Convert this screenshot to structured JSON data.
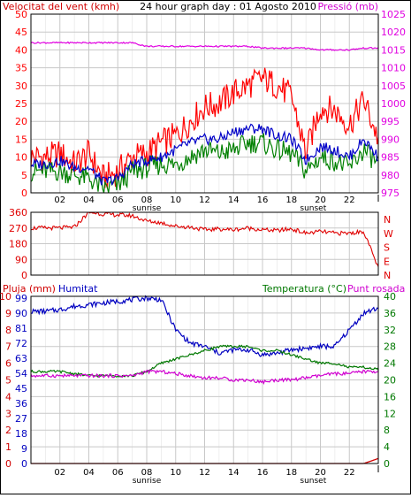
{
  "title": "24 hour graph day : 01 Agosto 2010",
  "colors": {
    "background": "#ffffff",
    "frame": "#000000",
    "grid": "#c8c8c8",
    "gust": "#ff0000",
    "wind": "#0000c8",
    "wind_min": "#008000",
    "pressure": "#e000e0",
    "direction": "#e00000",
    "rain": "#d00000",
    "humidity": "#0000c0",
    "temperature": "#007800",
    "dewpoint": "#d000d0"
  },
  "hours": [
    "02",
    "04",
    "06",
    "08",
    "10",
    "12",
    "14",
    "16",
    "18",
    "20",
    "22"
  ],
  "sunrise_label": "sunrise",
  "sunset_label": "sunset",
  "chart_data": [
    {
      "type": "line",
      "title": "24 hour graph day : 01 Agosto 2010",
      "ylabel": "Velocitat del vent (kmh)",
      "y2label": "Pressió (mb)",
      "ylim": [
        0,
        50
      ],
      "y_ticks": [
        "0",
        "5",
        "10",
        "15",
        "20",
        "25",
        "30",
        "35",
        "40",
        "45",
        "50"
      ],
      "y2lim": [
        975,
        1025
      ],
      "y2_ticks": [
        "975",
        "980",
        "985",
        "990",
        "995",
        "1000",
        "1005",
        "1010",
        "1015",
        "1020",
        "1025"
      ],
      "x": [
        0,
        1,
        2,
        3,
        4,
        5,
        6,
        7,
        8,
        9,
        10,
        11,
        12,
        13,
        14,
        15,
        16,
        17,
        18,
        19,
        20,
        21,
        22,
        23,
        24
      ],
      "grid": true,
      "series": [
        {
          "key": "gust",
          "axis": "left",
          "values": [
            10,
            10,
            11,
            8,
            11,
            4,
            6,
            10,
            11,
            14,
            16,
            20,
            24,
            25,
            28,
            30,
            32,
            30,
            27,
            11,
            24,
            23,
            19,
            26,
            15
          ]
        },
        {
          "key": "wind",
          "axis": "left",
          "values": [
            8,
            8,
            9,
            7,
            7,
            3,
            4,
            8,
            9,
            10,
            12,
            14,
            15,
            15,
            17,
            18,
            18,
            16,
            15,
            9,
            13,
            12,
            10,
            15,
            10
          ]
        },
        {
          "key": "wind_min",
          "axis": "left",
          "values": [
            6,
            6,
            6,
            5,
            4,
            1,
            2,
            6,
            7,
            8,
            8,
            10,
            12,
            11,
            12,
            14,
            14,
            12,
            11,
            6,
            10,
            9,
            7,
            12,
            8
          ]
        },
        {
          "key": "pressure",
          "axis": "right",
          "values": [
            1017,
            1017,
            1017,
            1017,
            1017,
            1017,
            1017,
            1017,
            1016,
            1016,
            1016,
            1016,
            1016,
            1016,
            1016,
            1016,
            1015.5,
            1015.5,
            1015.5,
            1015.5,
            1015,
            1015,
            1015,
            1015.5,
            1015.5
          ]
        }
      ]
    },
    {
      "type": "line",
      "ylim": [
        0,
        360
      ],
      "y_ticks": [
        "0",
        "90",
        "180",
        "270",
        "360"
      ],
      "y_labels_right": [
        "N",
        "W",
        "S",
        "E",
        "N"
      ],
      "x": [
        0,
        1,
        2,
        3,
        4,
        5,
        6,
        7,
        8,
        9,
        10,
        11,
        12,
        13,
        14,
        15,
        16,
        17,
        18,
        19,
        20,
        21,
        22,
        23,
        24
      ],
      "grid": true,
      "series": [
        {
          "key": "direction",
          "values": [
            270,
            270,
            270,
            275,
            360,
            350,
            345,
            340,
            310,
            300,
            280,
            275,
            260,
            265,
            260,
            270,
            260,
            255,
            265,
            240,
            250,
            240,
            240,
            250,
            40
          ]
        }
      ]
    },
    {
      "type": "line",
      "ylabel": "Pluja (mm)",
      "ylabel2": "Humitat",
      "y2label": "Temperatura (°C)",
      "y2label2": "Punt rosada",
      "ylim": [
        0,
        10
      ],
      "y_ticks": [
        "0",
        "1",
        "2",
        "3",
        "4",
        "5",
        "6",
        "7",
        "8",
        "9",
        "10"
      ],
      "ylim_humidity": [
        0,
        100
      ],
      "y_ticks_humidity": [
        "0",
        "9",
        "18",
        "27",
        "36",
        "45",
        "54",
        "63",
        "72",
        "81",
        "90",
        "99"
      ],
      "y2lim": [
        0,
        40
      ],
      "y2_ticks": [
        "0",
        "4",
        "8",
        "12",
        "16",
        "20",
        "24",
        "28",
        "32",
        "36",
        "40"
      ],
      "x": [
        0,
        1,
        2,
        3,
        4,
        5,
        6,
        7,
        8,
        9,
        10,
        11,
        12,
        13,
        14,
        15,
        16,
        17,
        18,
        19,
        20,
        21,
        22,
        23,
        24
      ],
      "grid": true,
      "series": [
        {
          "key": "rain",
          "axis": "left",
          "values": [
            0,
            0,
            0,
            0,
            0,
            0,
            0,
            0,
            0,
            0,
            0,
            0,
            0,
            0,
            0,
            0,
            0,
            0,
            0,
            0,
            0,
            0,
            0,
            0,
            0.3
          ]
        },
        {
          "key": "humidity",
          "axis": "humidity",
          "values": [
            91,
            91,
            92,
            94,
            95,
            96,
            97,
            98,
            99,
            98,
            80,
            72,
            70,
            66,
            68,
            68,
            65,
            66,
            68,
            69,
            70,
            70,
            80,
            90,
            93
          ]
        },
        {
          "key": "temperature",
          "axis": "right",
          "values": [
            22,
            22,
            22,
            21.5,
            21,
            21,
            21,
            21,
            22,
            24,
            25,
            26,
            27,
            28,
            28,
            28,
            27,
            27,
            26,
            25,
            24,
            24,
            23,
            23,
            22.5
          ]
        },
        {
          "key": "dewpoint",
          "axis": "right",
          "values": [
            21,
            21,
            21,
            21,
            21,
            21,
            21,
            21,
            22,
            22,
            21.5,
            21,
            20.5,
            20.5,
            20,
            20,
            19.5,
            20,
            20,
            20.5,
            21,
            21.5,
            21.5,
            22,
            22
          ]
        }
      ]
    }
  ]
}
